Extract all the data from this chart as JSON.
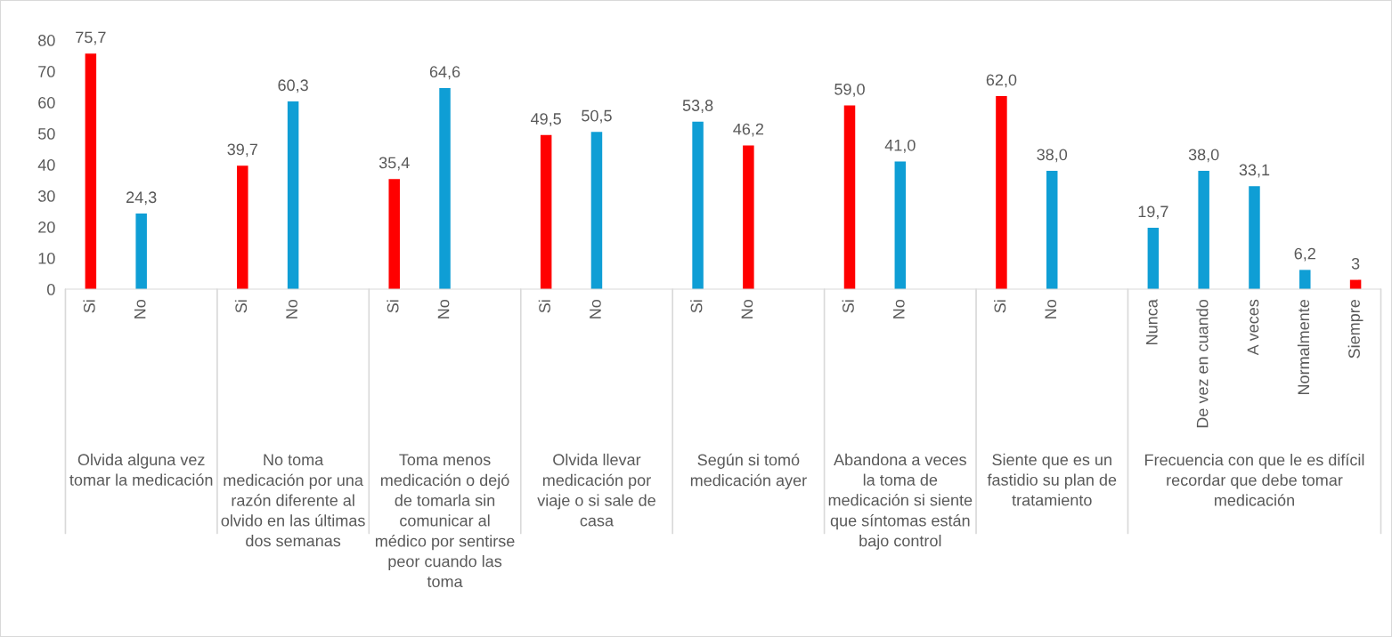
{
  "chart_data": {
    "type": "bar",
    "categories": [
      "Si",
      "No",
      null,
      "Si",
      "No",
      null,
      "Si",
      "No",
      null,
      "Si",
      "No",
      null,
      "Si",
      "No",
      null,
      "Si",
      "No",
      null,
      "Si",
      "No",
      null,
      "Nunca",
      "De vez en cuando",
      "A veces",
      "Normalmente",
      "Siempre"
    ],
    "values": [
      75.7,
      24.3,
      null,
      39.7,
      60.3,
      null,
      35.4,
      64.6,
      null,
      49.5,
      50.5,
      null,
      53.8,
      46.2,
      null,
      59.0,
      41.0,
      null,
      62.0,
      38.0,
      null,
      19.7,
      38.0,
      33.1,
      6.2,
      3
    ],
    "value_labels": [
      "75,7",
      "24,3",
      null,
      "39,7",
      "60,3",
      null,
      "35,4",
      "64,6",
      null,
      "49,5",
      "50,5",
      null,
      "53,8",
      "46,2",
      null,
      "59,0",
      "41,0",
      null,
      "62,0",
      "38,0",
      null,
      "19,7",
      "38,0",
      "33,1",
      "6,2",
      "3"
    ],
    "colors": [
      "#ff0000",
      "#0f9ed5",
      null,
      "#ff0000",
      "#0f9ed5",
      null,
      "#ff0000",
      "#0f9ed5",
      null,
      "#ff0000",
      "#0f9ed5",
      null,
      "#0f9ed5",
      "#ff0000",
      null,
      "#ff0000",
      "#0f9ed5",
      null,
      "#ff0000",
      "#0f9ed5",
      null,
      "#0f9ed5",
      "#0f9ed5",
      "#0f9ed5",
      "#0f9ed5",
      "#ff0000"
    ],
    "annotations": [
      "Olvida alguna vez tomar la medicación",
      "No toma medicación por una razón diferente al olvido en las últimas dos semanas",
      "Toma menos medicación o dejó de tomarla sin comunicar al médico por sentirse peor cuando las toma",
      "Olvida llevar medicación por viaje o si sale de casa",
      "Según si tomó medicación ayer",
      "Abandona a veces la toma de medicación si siente que síntomas están bajo control",
      "Siente que es un fastidio su plan de tratamiento",
      "Frecuencia con que le es difícil recordar que debe tomar medicación"
    ],
    "ylim": [
      0,
      80
    ],
    "yticks": [
      0,
      10,
      20,
      30,
      40,
      50,
      60,
      70,
      80
    ],
    "grid": false,
    "legend": false
  }
}
